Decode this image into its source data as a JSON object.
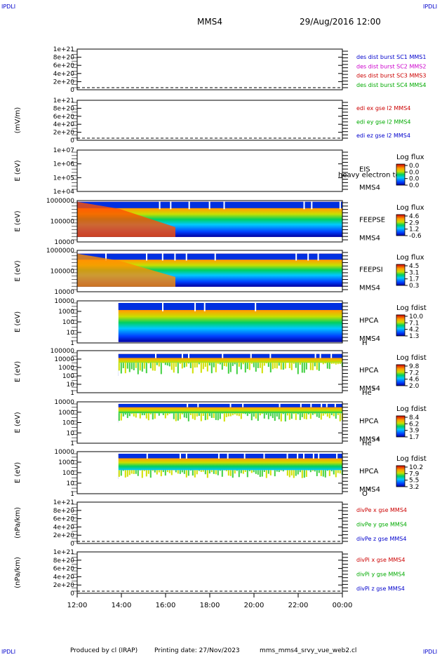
{
  "corner_label": "IPDLI",
  "header": {
    "spacecraft": "MMS4",
    "datetime": "29/Aug/2016 12:00"
  },
  "footer": {
    "produced_by": "Produced by cl (IRAP)",
    "printing_date": "Printing date: 27/Nov/2023",
    "script": "mms_mms4_srvy_vue_web2.cl"
  },
  "time_ticks": [
    "12:00",
    "14:00",
    "16:00",
    "18:00",
    "20:00",
    "22:00",
    "00:00"
  ],
  "colors": {
    "red": "#cc0000",
    "magenta": "#cc00cc",
    "green": "#00aa00",
    "blue": "#0000cc",
    "frame": "#000000"
  },
  "chart_data": [
    {
      "type": "line",
      "yticks": [
        "1e+21",
        "8e+20",
        "6e+20",
        "4e+20",
        "2e+20",
        "0"
      ],
      "ylabel": "",
      "series": [
        {
          "name": "des dist burst SC1 MMS1",
          "color": "#0000cc"
        },
        {
          "name": "des dist burst SC2 MMS2",
          "color": "#cc00cc"
        },
        {
          "name": "des dist burst SC3 MMS3",
          "color": "#cc0000"
        },
        {
          "name": "des dist burst SC4 MMS4",
          "color": "#00aa00"
        }
      ]
    },
    {
      "type": "line",
      "yticks": [
        "1e+21",
        "8e+20",
        "6e+20",
        "4e+20",
        "2e+20",
        "0"
      ],
      "ylabel": "(mV/m)",
      "series": [
        {
          "name": "edi ex gse l2 MMS4",
          "color": "#cc0000"
        },
        {
          "name": "edi ey gse l2 MMS4",
          "color": "#00aa00"
        },
        {
          "name": "edi ez gse l2 MMS4",
          "color": "#0000cc"
        }
      ]
    },
    {
      "type": "heatmap",
      "ylabel": "E (eV)",
      "yticks": [
        "1e+07",
        "1e+06",
        "1e+05",
        "1e+04"
      ],
      "instrument": "EIS",
      "spacecraft": "MMS4",
      "extra": "heavy electron to",
      "colorbar": {
        "title": "Log flux",
        "ticks": [
          "0.0",
          "0.0",
          "0.0",
          "0.0"
        ]
      },
      "data_start": "",
      "coverage": 0
    },
    {
      "type": "heatmap",
      "ylabel": "E (eV)",
      "yticks": [
        "1000000",
        "100000",
        "10000"
      ],
      "instrument": "FEEPSE",
      "spacecraft": "MMS4",
      "colorbar": {
        "title": "Log flux",
        "ticks": [
          "4.6",
          "2.9",
          "1.2",
          "-0.6"
        ]
      },
      "data_start": "12:00",
      "coverage": 1,
      "band": [
        0.03,
        0.88
      ]
    },
    {
      "type": "heatmap",
      "ylabel": "E (eV)",
      "yticks": [
        "1000000",
        "100000",
        "10000"
      ],
      "instrument": "FEEPSI",
      "spacecraft": "MMS4",
      "colorbar": {
        "title": "Log flux",
        "ticks": [
          "4.5",
          "3.1",
          "1.7",
          "0.3"
        ]
      },
      "data_start": "12:00",
      "coverage": 1,
      "band": [
        0.08,
        0.88
      ]
    },
    {
      "type": "heatmap",
      "ylabel": "E (eV)",
      "yticks": [
        "10000",
        "1000",
        "100",
        "10",
        "1"
      ],
      "instrument": "HPCA",
      "spacecraft": "MMS4",
      "species": "H",
      "species_charge": "+",
      "colorbar": {
        "title": "Log fdist",
        "ticks": [
          "10.0",
          "7.1",
          "4.2",
          "1.3"
        ]
      },
      "data_start": "13:52",
      "coverage": 1,
      "band": [
        0.05,
        0.98
      ]
    },
    {
      "type": "heatmap",
      "ylabel": "E (eV)",
      "yticks": [
        "100000",
        "10000",
        "1000",
        "100",
        "10",
        "1"
      ],
      "instrument": "HPCA",
      "spacecraft": "MMS4",
      "species": "He",
      "species_charge": "+",
      "colorbar": {
        "title": "Log fdist",
        "ticks": [
          "9.8",
          "7.2",
          "4.6",
          "2.0"
        ]
      },
      "data_start": "13:52",
      "coverage": 0.4,
      "band": [
        0.08,
        0.6
      ]
    },
    {
      "type": "heatmap",
      "ylabel": "E (eV)",
      "yticks": [
        "10000",
        "1000",
        "100",
        "10",
        "1"
      ],
      "instrument": "HPCA",
      "spacecraft": "MMS4",
      "species": "He",
      "species_charge": "++",
      "colorbar": {
        "title": "Log fdist",
        "ticks": [
          "8.4",
          "6.2",
          "3.9",
          "1.7"
        ]
      },
      "data_start": "13:52",
      "coverage": 0.5,
      "band": [
        0.05,
        0.5
      ]
    },
    {
      "type": "heatmap",
      "ylabel": "E (eV)",
      "yticks": [
        "10000",
        "1000",
        "100",
        "10",
        "1"
      ],
      "instrument": "HPCA",
      "spacecraft": "MMS4",
      "species": "O",
      "species_charge": "+",
      "colorbar": {
        "title": "Log fdist",
        "ticks": [
          "10.2",
          "7.9",
          "5.5",
          "3.2"
        ]
      },
      "data_start": "13:52",
      "coverage": 0.65,
      "band": [
        0.05,
        0.65
      ]
    },
    {
      "type": "line",
      "yticks": [
        "1e+21",
        "8e+20",
        "6e+20",
        "4e+20",
        "2e+20",
        "0"
      ],
      "ylabel": "(nPa/km)",
      "series": [
        {
          "name": "divPe x gse MMS4",
          "color": "#cc0000"
        },
        {
          "name": "divPe y gse MMS4",
          "color": "#00aa00"
        },
        {
          "name": "divPe z gse MMS4",
          "color": "#0000cc"
        }
      ]
    },
    {
      "type": "line",
      "yticks": [
        "1e+21",
        "8e+20",
        "6e+20",
        "4e+20",
        "2e+20",
        "0"
      ],
      "ylabel": "(nPa/km)",
      "series": [
        {
          "name": "divPi x gse MMS4",
          "color": "#cc0000"
        },
        {
          "name": "divPi y gse MMS4",
          "color": "#00aa00"
        },
        {
          "name": "divPi z gse MMS4",
          "color": "#0000cc"
        }
      ]
    }
  ]
}
